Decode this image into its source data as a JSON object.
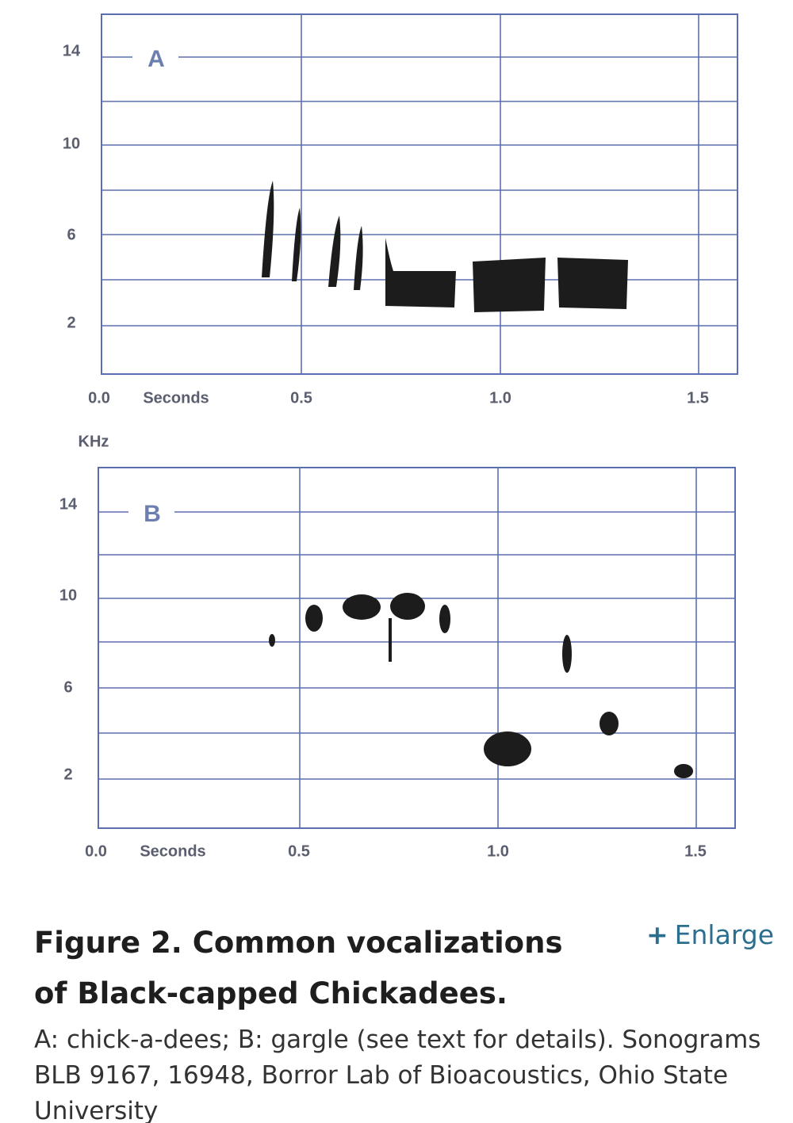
{
  "figure": {
    "panels": [
      {
        "label": "A",
        "y_labels": [
          "14",
          "10",
          "6",
          "2"
        ],
        "x_labels": [
          "0.0",
          "Seconds",
          "0.5",
          "1.0",
          "1.5"
        ]
      },
      {
        "unit": "KHz",
        "label": "B",
        "y_labels": [
          "14",
          "10",
          "6",
          "2"
        ],
        "x_labels": [
          "0.0",
          "Seconds",
          "0.5",
          "1.0",
          "1.5"
        ]
      }
    ],
    "title": "Figure 2. Common vocalizations of Black-capped Chickadees.",
    "enlarge": "Enlarge",
    "caption": "A: chick-a-dees; B: gargle (see text for details). Sonograms BLB 9167, 16948, Borror Lab of Bioacoustics, Ohio State University"
  }
}
